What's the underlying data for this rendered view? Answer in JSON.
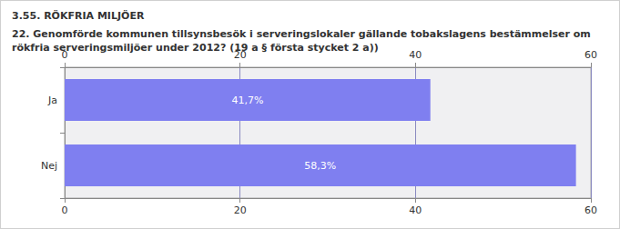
{
  "chart_data": {
    "type": "bar",
    "orientation": "horizontal",
    "title": "3.55. RÖKFRIA MILJÖER",
    "subtitle": "22. Genomförde kommunen tillsynsbesök i serveringslokaler gällande tobakslagens bestämmelser om rökfria serveringsmiljöer under 2012? (19 a § första stycket 2 a))",
    "categories": [
      "Ja",
      "Nej"
    ],
    "values": [
      41.7,
      58.3
    ],
    "value_labels": [
      "41,7%",
      "58,3%"
    ],
    "color": "#7f7ff0",
    "xlim": [
      0,
      60
    ],
    "xticks": [
      0,
      20,
      40,
      60
    ],
    "grid": true,
    "data_labels": true
  }
}
